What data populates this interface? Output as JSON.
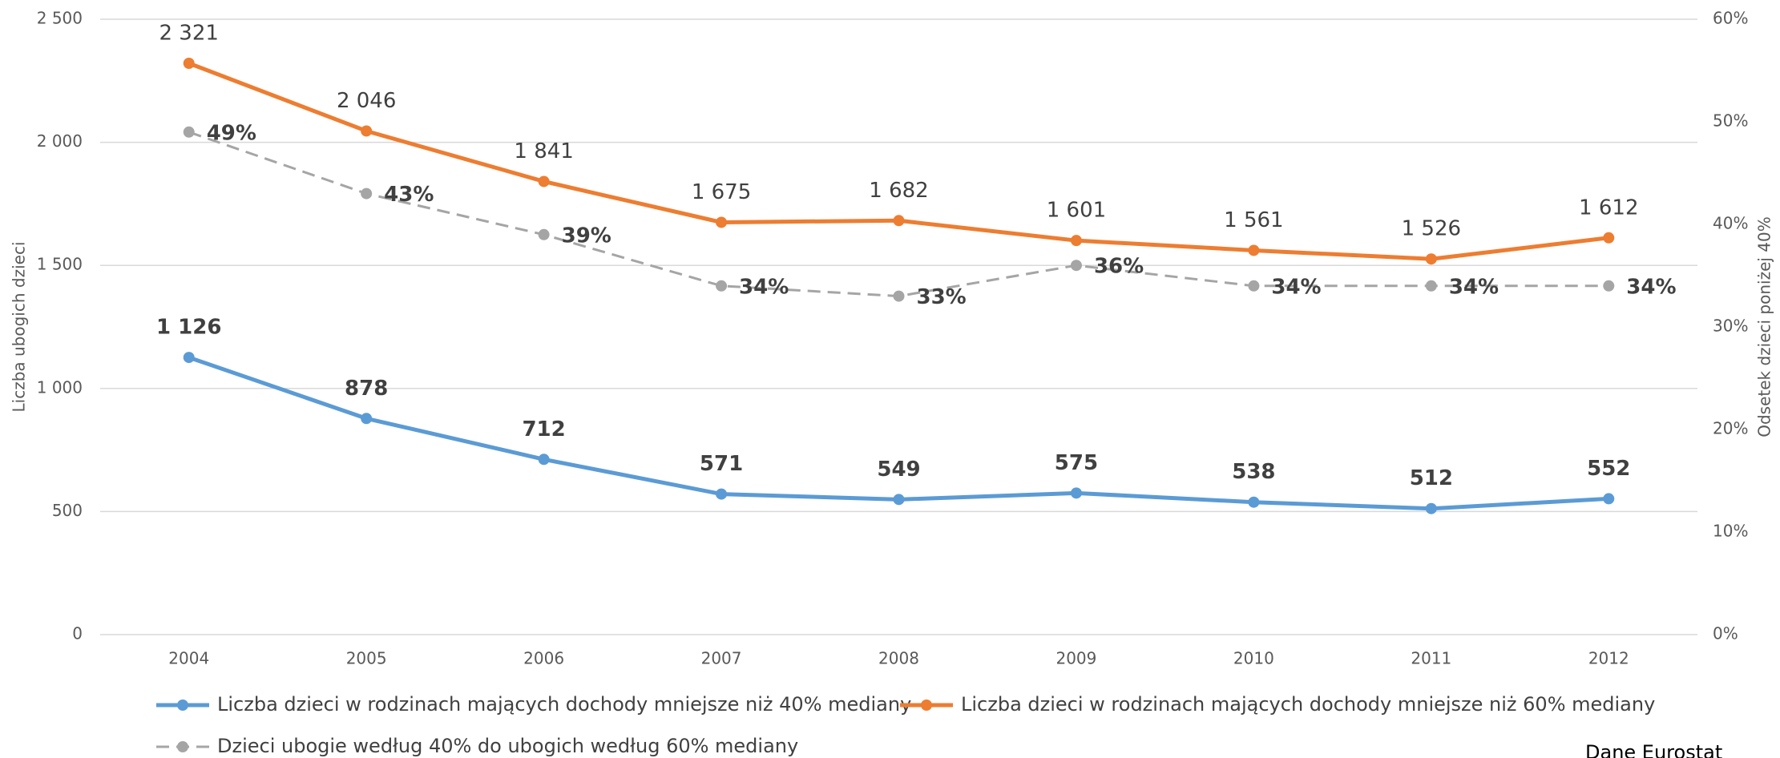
{
  "chart_data": {
    "type": "line",
    "x": [
      2004,
      2005,
      2006,
      2007,
      2008,
      2009,
      2010,
      2011,
      2012
    ],
    "xlim": [
      2003.5,
      2012.5
    ],
    "xticks": [
      2004,
      2005,
      2006,
      2007,
      2008,
      2009,
      2010,
      2011,
      2012
    ],
    "ylabel": "Liczba ubogich dzieci",
    "y2label": "Odsetek dzieci poniżej 40%",
    "ylim": [
      0,
      2500
    ],
    "yticks": [
      0,
      {
        "value": 500,
        "label": "500"
      },
      {
        "value": 1000,
        "label": "1 000"
      },
      {
        "value": 1500,
        "label": "1 500"
      },
      {
        "value": 2000,
        "label": "2 000"
      },
      {
        "value": 2500,
        "label": "2 500"
      }
    ],
    "y2lim": [
      0,
      60
    ],
    "y2ticks": [
      {
        "value": 0,
        "label": "0%"
      },
      {
        "value": 10,
        "label": "10%"
      },
      {
        "value": 20,
        "label": "20%"
      },
      {
        "value": 30,
        "label": "30%"
      },
      {
        "value": 40,
        "label": "40%"
      },
      {
        "value": 50,
        "label": "50%"
      },
      {
        "value": 60,
        "label": "60%"
      }
    ],
    "grid": true,
    "series": [
      {
        "name": "Liczba dzieci w rodzinach mających dochody mniejsze niż 40% mediany",
        "color": "#5b9bd5",
        "values": [
          1126,
          878,
          712,
          571,
          549,
          575,
          538,
          512,
          552
        ],
        "value_labels": [
          "1 126",
          "878",
          "712",
          "571",
          "549",
          "575",
          "538",
          "512",
          "552"
        ]
      },
      {
        "name": "Liczba dzieci w rodzinach mających dochody mniejsze niż 60% mediany",
        "color": "#ed7d31",
        "values": [
          2321,
          2046,
          1841,
          1675,
          1682,
          1601,
          1561,
          1526,
          1612
        ],
        "value_labels": [
          "2 321",
          "2 046",
          "1 841",
          "1 675",
          "1 682",
          "1 601",
          "1 561",
          "1 526",
          "1 612"
        ]
      },
      {
        "name": "Dzieci ubogie według 40% do ubogich według 60% mediany",
        "color": "#a5a5a5",
        "axis": "y2",
        "dashed": true,
        "values": [
          49,
          43,
          39,
          34,
          33,
          36,
          34,
          34,
          34
        ],
        "value_labels": [
          "49%",
          "43%",
          "39%",
          "34%",
          "33%",
          "36%",
          "34%",
          "34%",
          "34%"
        ]
      }
    ],
    "source": "Dane Eurostat"
  }
}
